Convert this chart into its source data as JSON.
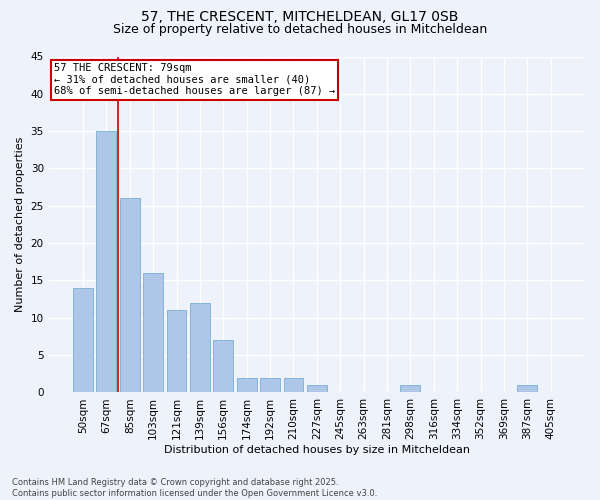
{
  "title1": "57, THE CRESCENT, MITCHELDEAN, GL17 0SB",
  "title2": "Size of property relative to detached houses in Mitcheldean",
  "xlabel": "Distribution of detached houses by size in Mitcheldean",
  "ylabel": "Number of detached properties",
  "categories": [
    "50sqm",
    "67sqm",
    "85sqm",
    "103sqm",
    "121sqm",
    "139sqm",
    "156sqm",
    "174sqm",
    "192sqm",
    "210sqm",
    "227sqm",
    "245sqm",
    "263sqm",
    "281sqm",
    "298sqm",
    "316sqm",
    "334sqm",
    "352sqm",
    "369sqm",
    "387sqm",
    "405sqm"
  ],
  "values": [
    14,
    35,
    26,
    16,
    11,
    12,
    7,
    2,
    2,
    2,
    1,
    0,
    0,
    0,
    1,
    0,
    0,
    0,
    0,
    1,
    0
  ],
  "bar_color": "#aec6e8",
  "bar_edge_color": "#7aafd4",
  "vertical_line_x": 1.5,
  "annotation_text": "57 THE CRESCENT: 79sqm\n← 31% of detached houses are smaller (40)\n68% of semi-detached houses are larger (87) →",
  "annotation_box_facecolor": "#ffffff",
  "annotation_box_edgecolor": "#cc0000",
  "background_color": "#eef2fb",
  "grid_color": "#ffffff",
  "ylim": [
    0,
    45
  ],
  "yticks": [
    0,
    5,
    10,
    15,
    20,
    25,
    30,
    35,
    40,
    45
  ],
  "footer": "Contains HM Land Registry data © Crown copyright and database right 2025.\nContains public sector information licensed under the Open Government Licence v3.0.",
  "title1_fontsize": 10,
  "title2_fontsize": 9,
  "axis_label_fontsize": 8,
  "tick_fontsize": 7.5,
  "footer_fontsize": 6,
  "annotation_fontsize": 7.5
}
